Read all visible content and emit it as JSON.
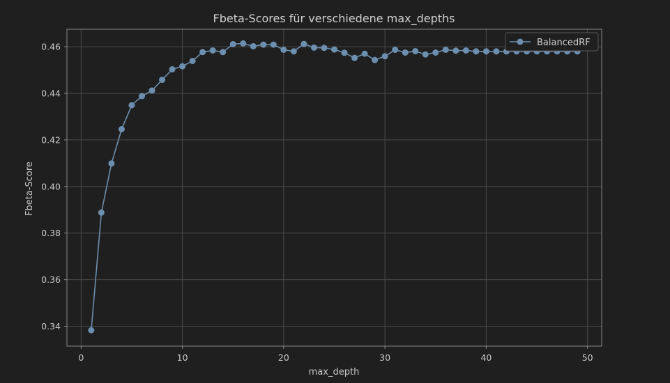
{
  "chart_data": {
    "type": "line",
    "title": "Fbeta-Scores für verschiedene max_depths",
    "xlabel": "max_depth",
    "ylabel": "Fbeta-Score",
    "xlim": [
      -1.4,
      51.4
    ],
    "ylim": [
      0.3315,
      0.4675
    ],
    "xticks": [
      0,
      10,
      20,
      30,
      40,
      50
    ],
    "yticks": [
      0.34,
      0.36,
      0.38,
      0.4,
      0.42,
      0.44,
      0.46
    ],
    "xtick_labels": [
      "0",
      "10",
      "20",
      "30",
      "40",
      "50"
    ],
    "ytick_labels": [
      "0.34",
      "0.36",
      "0.38",
      "0.40",
      "0.42",
      "0.44",
      "0.46"
    ],
    "grid": true,
    "legend_position": "top-right",
    "colors": {
      "background": "#1f1f1f",
      "series": "#6d8faf",
      "grid": "#4a4a4a",
      "frame": "#8a8a8a"
    },
    "series": [
      {
        "name": "BalancedRF",
        "marker": "circle",
        "x": [
          1,
          2,
          3,
          4,
          5,
          6,
          7,
          8,
          9,
          10,
          11,
          12,
          13,
          14,
          15,
          16,
          17,
          18,
          19,
          20,
          21,
          22,
          23,
          24,
          25,
          26,
          27,
          28,
          29,
          30,
          31,
          32,
          33,
          34,
          35,
          36,
          37,
          38,
          39,
          40,
          41,
          42,
          43,
          44,
          45,
          46,
          47,
          48,
          49
        ],
        "y": [
          0.3383,
          0.3888,
          0.4099,
          0.4246,
          0.4349,
          0.4388,
          0.4412,
          0.4458,
          0.4503,
          0.4516,
          0.4539,
          0.4577,
          0.4584,
          0.4577,
          0.4611,
          0.4614,
          0.4602,
          0.4609,
          0.4609,
          0.4587,
          0.458,
          0.4612,
          0.4596,
          0.4595,
          0.4588,
          0.4574,
          0.4552,
          0.457,
          0.4543,
          0.4559,
          0.4587,
          0.4575,
          0.4581,
          0.4567,
          0.4575,
          0.4587,
          0.4583,
          0.4584,
          0.458,
          0.458,
          0.458,
          0.458,
          0.458,
          0.458,
          0.458,
          0.458,
          0.458,
          0.458,
          0.458
        ]
      }
    ]
  }
}
